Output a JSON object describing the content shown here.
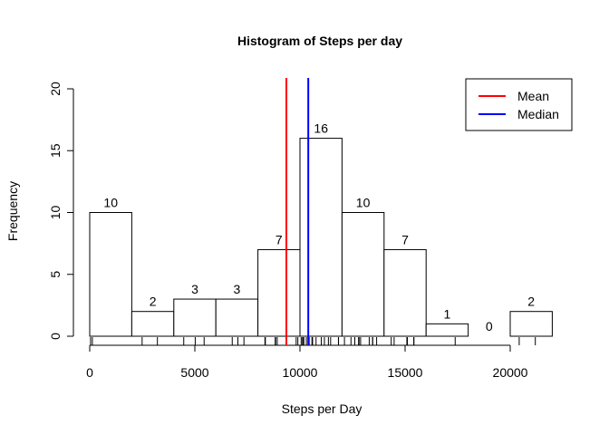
{
  "chart_data": {
    "type": "bar",
    "title": "Histogram of Steps per day",
    "xlabel": "Steps per Day",
    "ylabel": "Frequency",
    "bins": [
      {
        "from": 0,
        "to": 2000,
        "count": 10
      },
      {
        "from": 2000,
        "to": 4000,
        "count": 2
      },
      {
        "from": 4000,
        "to": 6000,
        "count": 3
      },
      {
        "from": 6000,
        "to": 8000,
        "count": 3
      },
      {
        "from": 8000,
        "to": 10000,
        "count": 7
      },
      {
        "from": 10000,
        "to": 12000,
        "count": 16
      },
      {
        "from": 12000,
        "to": 14000,
        "count": 10
      },
      {
        "from": 14000,
        "to": 16000,
        "count": 7
      },
      {
        "from": 16000,
        "to": 18000,
        "count": 1
      },
      {
        "from": 18000,
        "to": 20000,
        "count": 0
      },
      {
        "from": 20000,
        "to": 22000,
        "count": 2
      }
    ],
    "xlim": [
      0,
      22000
    ],
    "ylim": [
      0,
      20
    ],
    "x_ticks": [
      0,
      5000,
      10000,
      15000,
      20000
    ],
    "y_ticks": [
      0,
      5,
      10,
      15,
      20
    ],
    "mean": 9354,
    "median": 10395,
    "rug": [
      41,
      126,
      2492,
      3219,
      4472,
      5018,
      5441,
      6778,
      7047,
      7336,
      8334,
      8355,
      8821,
      8841,
      8918,
      9819,
      9900,
      10056,
      10119,
      10139,
      10183,
      10304,
      10395,
      10439,
      10571,
      10600,
      10765,
      11015,
      11162,
      11352,
      11458,
      11829,
      11834,
      12116,
      12426,
      12608,
      12787,
      12811,
      12883,
      13294,
      13452,
      13460,
      13646,
      14339,
      14478,
      15084,
      15098,
      15110,
      15414,
      15420,
      17382,
      20427,
      21194
    ],
    "legend": {
      "position": "top-right",
      "items": [
        {
          "label": "Mean",
          "color": "#ff0000"
        },
        {
          "label": "Median",
          "color": "#0000ff"
        }
      ]
    }
  }
}
